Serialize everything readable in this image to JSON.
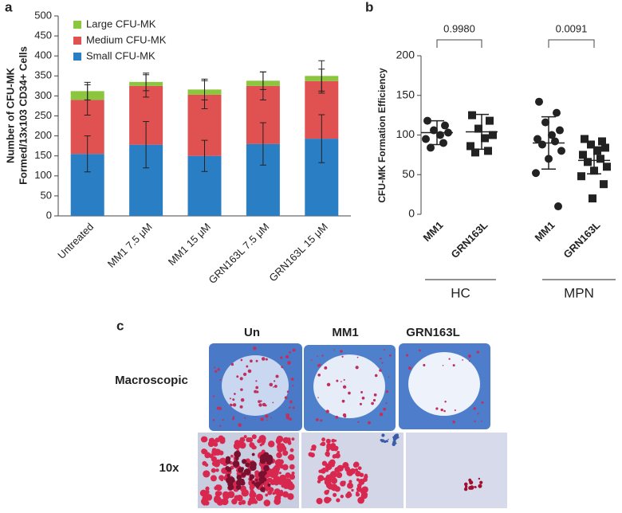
{
  "panels": [
    "a",
    "b",
    "c"
  ],
  "chart_data": [
    {
      "type": "stacked_bar",
      "y_label": [
        "Number of CFU-MK",
        "Formed/13x103 CD34+ Cells"
      ],
      "categories": [
        "Untreated",
        "MM1 7.5 μM",
        "MM1 15 μM",
        "GRN163L 7.5 μM",
        "GRN163L 15 μM"
      ],
      "series": [
        {
          "name": "Small CFU-MK",
          "color": "#2a7fc4",
          "values": [
            155,
            178,
            150,
            180,
            193
          ],
          "errors": [
            45,
            58,
            39,
            53,
            60
          ]
        },
        {
          "name": "Medium CFU-MK",
          "color": "#e05252",
          "values": [
            135,
            147,
            153,
            145,
            144
          ],
          "errors": [
            38,
            28,
            35,
            35,
            30
          ]
        },
        {
          "name": "Large CFU-MK",
          "color": "#8cc63f",
          "values": [
            22,
            10,
            13,
            13,
            13
          ],
          "errors": [
            22,
            22,
            26,
            22,
            38
          ]
        }
      ],
      "ylim": [
        0,
        500
      ],
      "yticks": [
        0,
        50,
        100,
        150,
        200,
        250,
        300,
        350,
        400,
        450,
        500
      ],
      "legend": "top-left"
    },
    {
      "type": "dot_plot",
      "y_label": "CFU-MK Formation Efficiency",
      "ylim": [
        0,
        200
      ],
      "yticks": [
        0,
        50,
        100,
        150,
        200
      ],
      "groups": [
        {
          "label": "HC",
          "p_value": "0.9980",
          "categories": [
            "MM1",
            "GRN163L"
          ],
          "markers": [
            "circle",
            "square"
          ],
          "points": [
            [
              118,
              112,
              106,
              103,
              100,
              95,
              90,
              84
            ],
            [
              125,
              118,
              108,
              100,
              96,
              86,
              80,
              78
            ]
          ],
          "means": [
            103,
            104
          ],
          "sds": [
            15,
            22
          ]
        },
        {
          "label": "MPN",
          "p_value": "0.0091",
          "categories": [
            "MM1",
            "GRN163L"
          ],
          "markers": [
            "circle",
            "square"
          ],
          "points": [
            [
              142,
              128,
              116,
              106,
              100,
              95,
              92,
              88,
              80,
              70,
              52,
              10
            ],
            [
              95,
              92,
              88,
              84,
              80,
              75,
              70,
              66,
              60,
              55,
              48,
              38,
              20
            ]
          ],
          "means": [
            90,
            68
          ],
          "sds": [
            33,
            17
          ]
        }
      ]
    }
  ],
  "panel_c": {
    "columns": [
      "Un",
      "MM1",
      "GRN163L"
    ],
    "rows": [
      "Macroscopic",
      "10x"
    ]
  }
}
